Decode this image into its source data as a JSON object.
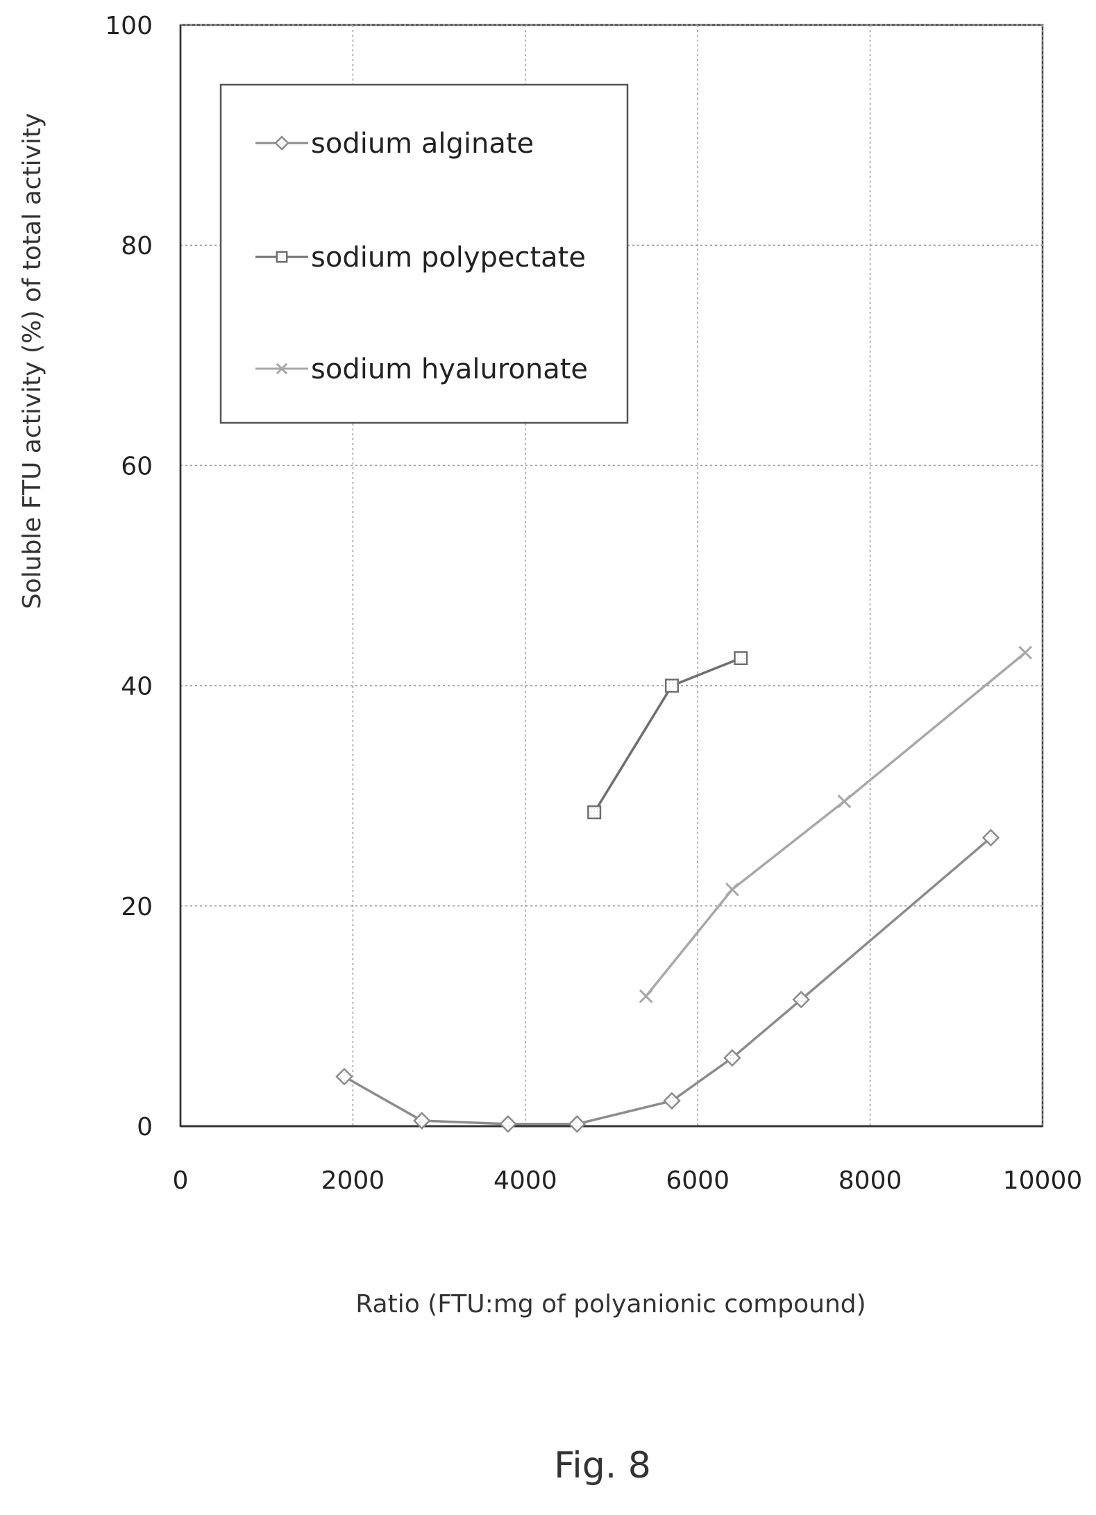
{
  "figure": {
    "caption": "Fig. 8"
  },
  "chart_data": {
    "type": "line",
    "title": "",
    "xlabel": "Ratio (FTU:mg of polyanionic compound)",
    "ylabel": "Soluble FTU activity (%) of total activity",
    "xlim": [
      0,
      10000
    ],
    "ylim": [
      0,
      100
    ],
    "xticks": [
      0,
      2000,
      4000,
      6000,
      8000,
      10000
    ],
    "yticks": [
      0,
      20,
      40,
      60,
      80,
      100
    ],
    "grid": true,
    "legend_position": "top-left",
    "series": [
      {
        "name": "sodium alginate",
        "marker": "diamond",
        "color": "#8c8c8c",
        "x": [
          1900,
          2800,
          3800,
          4600,
          5700,
          6400,
          7200,
          9400
        ],
        "y": [
          4.5,
          0.5,
          0.2,
          0.2,
          2.3,
          6.2,
          11.5,
          26.2
        ]
      },
      {
        "name": "sodium polypectate",
        "marker": "square",
        "color": "#6f6f6f",
        "x": [
          4800,
          5700,
          6500
        ],
        "y": [
          28.5,
          40.0,
          42.5
        ]
      },
      {
        "name": "sodium hyaluronate",
        "marker": "x",
        "color": "#a8a8a8",
        "x": [
          5400,
          6400,
          7700,
          9800
        ],
        "y": [
          11.8,
          21.5,
          29.5,
          43.0
        ]
      }
    ]
  }
}
